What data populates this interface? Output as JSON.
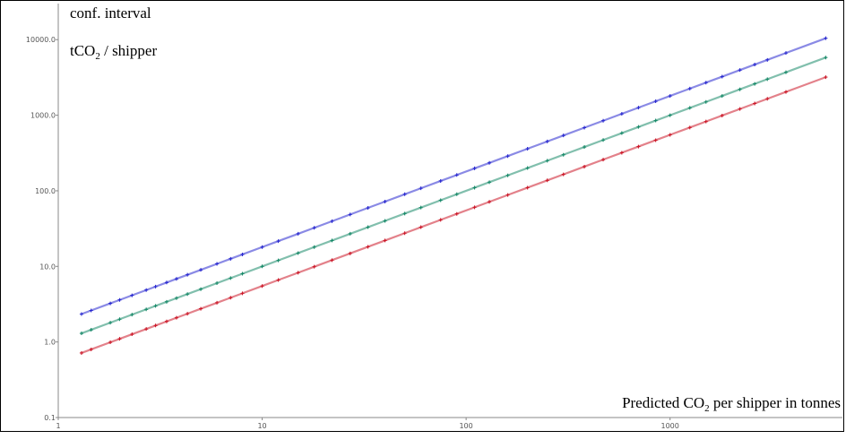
{
  "chart_data": {
    "type": "scatter",
    "title": "",
    "ylabel_line1": "conf. interval",
    "ylabel_line2_main": "tCO",
    "ylabel_line2_sub": "2",
    "ylabel_line2_tail": " / shipper",
    "xlabel_main": "Predicted CO",
    "xlabel_sub": "2",
    "xlabel_tail": " per shipper in tonnes",
    "x_scale": "log",
    "y_scale": "log",
    "xlim": [
      1,
      7000
    ],
    "ylim": [
      0.1,
      30000
    ],
    "x_ticks": [
      1,
      10,
      100,
      1000
    ],
    "x_tick_labels": [
      "1",
      "10",
      "100",
      "1000"
    ],
    "y_ticks": [
      0.1,
      1,
      10,
      100,
      1000,
      10000
    ],
    "y_tick_labels": [
      "0.1",
      "1.0",
      "10.0",
      "100.0",
      "1000.0",
      "10000.0"
    ],
    "grid": false,
    "series": [
      {
        "color": "#2a2ad0",
        "relation": "upper",
        "factor": 1.8,
        "x": [
          1.3,
          1.45,
          1.8,
          2.0,
          2.3,
          2.7,
          3.0,
          3.4,
          3.8,
          4.3,
          5,
          6,
          7,
          8,
          10,
          12,
          15,
          18,
          22,
          27,
          33,
          40,
          50,
          60,
          75,
          90,
          110,
          130,
          160,
          200,
          250,
          300,
          380,
          470,
          580,
          700,
          850,
          1000,
          1250,
          1500,
          1800,
          2200,
          2600,
          3000,
          3700,
          5800
        ]
      },
      {
        "color": "#1a8a6a",
        "relation": "predicted",
        "factor": 1.0,
        "x": [
          1.3,
          1.45,
          1.8,
          2.0,
          2.3,
          2.7,
          3.0,
          3.4,
          3.8,
          4.3,
          5,
          6,
          7,
          8,
          10,
          12,
          15,
          18,
          22,
          27,
          33,
          40,
          50,
          60,
          75,
          90,
          110,
          130,
          160,
          200,
          250,
          300,
          380,
          470,
          580,
          700,
          850,
          1000,
          1250,
          1500,
          1800,
          2200,
          2600,
          3000,
          3700,
          5800
        ]
      },
      {
        "color": "#cc1a2a",
        "relation": "lower",
        "factor": 0.55,
        "x": [
          1.3,
          1.45,
          1.8,
          2.0,
          2.3,
          2.7,
          3.0,
          3.4,
          3.8,
          4.3,
          5,
          6,
          7,
          8,
          10,
          12,
          15,
          18,
          22,
          27,
          33,
          40,
          50,
          60,
          75,
          90,
          110,
          130,
          160,
          200,
          250,
          300,
          380,
          470,
          580,
          700,
          850,
          1000,
          1250,
          1500,
          1800,
          2200,
          2600,
          3000,
          3700,
          5800
        ]
      }
    ]
  }
}
